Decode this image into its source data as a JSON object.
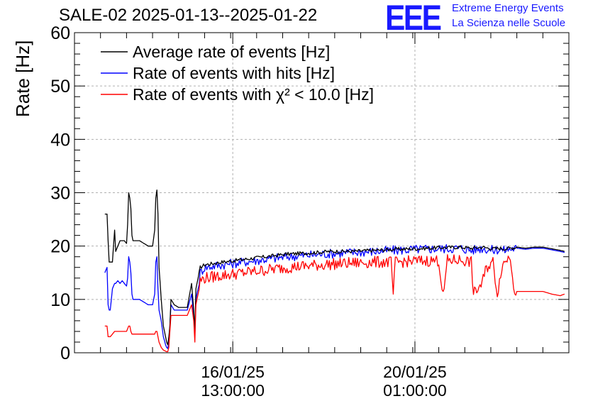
{
  "header": {
    "title": "SALE-02 2025-01-13--2025-01-22"
  },
  "logo": {
    "mark": "EEE",
    "line1": "Extreme Energy Events",
    "line2": "La Scienza nelle Scuole",
    "color": "#1a1aff"
  },
  "chart_data": {
    "type": "line",
    "title": "SALE-02 2025-01-13--2025-01-22",
    "ylabel": "Rate [Hz]",
    "xlabel": "",
    "ylim": [
      0,
      60
    ],
    "yticks": [
      "0",
      "10",
      "20",
      "30",
      "40",
      "50",
      "60"
    ],
    "x_unit": "hours since 2025-01-13 00:00",
    "xlim": [
      12,
      240
    ],
    "xticks": [
      {
        "x": 85,
        "line1": "16/01/25",
        "line2": "13:00:00"
      },
      {
        "x": 169,
        "line1": "20/01/25",
        "line2": "01:00:00"
      }
    ],
    "grid": true,
    "legend_position": "top-left",
    "series": [
      {
        "name": "Average rate of events [Hz]",
        "color": "#000000",
        "points": [
          [
            26,
            26
          ],
          [
            27,
            26
          ],
          [
            27.5,
            21
          ],
          [
            28,
            17
          ],
          [
            28.5,
            17
          ],
          [
            29.5,
            17
          ],
          [
            30.5,
            23
          ],
          [
            31,
            19
          ],
          [
            32,
            20
          ],
          [
            33,
            21
          ],
          [
            34,
            21
          ],
          [
            35,
            21
          ],
          [
            36,
            20.5
          ],
          [
            36.5,
            24
          ],
          [
            37,
            30
          ],
          [
            37.5,
            29
          ],
          [
            38,
            27
          ],
          [
            38.5,
            22
          ],
          [
            39,
            21
          ],
          [
            41,
            21
          ],
          [
            42,
            21
          ],
          [
            44,
            20.5
          ],
          [
            46,
            20
          ],
          [
            47,
            20
          ],
          [
            48,
            20
          ],
          [
            49,
            23
          ],
          [
            49.5,
            29
          ],
          [
            50,
            30.5
          ],
          [
            50.5,
            26
          ],
          [
            51,
            16
          ],
          [
            52,
            10
          ],
          [
            53,
            5
          ],
          [
            54,
            3
          ],
          [
            54.5,
            2
          ],
          [
            55,
            1.5
          ],
          [
            55.5,
            3
          ],
          [
            56,
            5
          ],
          [
            56.5,
            10
          ],
          [
            58,
            9
          ],
          [
            60,
            8.5
          ],
          [
            62,
            8.5
          ],
          [
            64,
            8.5
          ],
          [
            66,
            13
          ],
          [
            67,
            8
          ],
          [
            67.5,
            4
          ],
          [
            68,
            12
          ],
          [
            69,
            14
          ],
          [
            70,
            16
          ],
          [
            72,
            16.5
          ],
          [
            80,
            17
          ],
          [
            90,
            17.5
          ],
          [
            100,
            18
          ],
          [
            110,
            18.5
          ],
          [
            120,
            18.7
          ],
          [
            130,
            19
          ],
          [
            140,
            19
          ],
          [
            150,
            19.2
          ],
          [
            160,
            19.4
          ],
          [
            170,
            19.5
          ],
          [
            180,
            19.7
          ],
          [
            190,
            19.8
          ],
          [
            195,
            19.6
          ],
          [
            200,
            19.8
          ],
          [
            205,
            19.5
          ],
          [
            208,
            19.6
          ],
          [
            210,
            19.5
          ],
          [
            213,
            19.6
          ],
          [
            216,
            19.8
          ],
          [
            220,
            19.6
          ],
          [
            224,
            19.8
          ],
          [
            228,
            19.8
          ],
          [
            232,
            19.5
          ],
          [
            236,
            19.2
          ],
          [
            238,
            19
          ]
        ]
      },
      {
        "name": "Rate of events with hits [Hz]",
        "color": "#0000ff",
        "points": [
          [
            26,
            15
          ],
          [
            27,
            16
          ],
          [
            27.5,
            9
          ],
          [
            28,
            8
          ],
          [
            28.5,
            8
          ],
          [
            29.5,
            12
          ],
          [
            30.5,
            13
          ],
          [
            31,
            13
          ],
          [
            32,
            13.5
          ],
          [
            33,
            13
          ],
          [
            34,
            13.5
          ],
          [
            35,
            13
          ],
          [
            36,
            12.5
          ],
          [
            36.5,
            14
          ],
          [
            37,
            18
          ],
          [
            37.5,
            17
          ],
          [
            38,
            15
          ],
          [
            38.5,
            11
          ],
          [
            39,
            10
          ],
          [
            41,
            10
          ],
          [
            42,
            10
          ],
          [
            44,
            9.5
          ],
          [
            46,
            9
          ],
          [
            47,
            9
          ],
          [
            48,
            9
          ],
          [
            49,
            11
          ],
          [
            49.5,
            17
          ],
          [
            50,
            18
          ],
          [
            50.5,
            12
          ],
          [
            51,
            8
          ],
          [
            52,
            6
          ],
          [
            53,
            3
          ],
          [
            54,
            1.5
          ],
          [
            54.5,
            1
          ],
          [
            55,
            0.8
          ],
          [
            55.5,
            2
          ],
          [
            56,
            5
          ],
          [
            56.5,
            9
          ],
          [
            58,
            8
          ],
          [
            60,
            8
          ],
          [
            62,
            8
          ],
          [
            64,
            8
          ],
          [
            66,
            11
          ],
          [
            67,
            7
          ],
          [
            67.5,
            3
          ],
          [
            68,
            10
          ],
          [
            69,
            12
          ],
          [
            70,
            15
          ],
          [
            72,
            16
          ],
          [
            80,
            16.5
          ],
          [
            90,
            17
          ],
          [
            100,
            17.5
          ],
          [
            110,
            18
          ],
          [
            120,
            18.3
          ],
          [
            130,
            18.6
          ],
          [
            140,
            18.8
          ],
          [
            150,
            19
          ],
          [
            160,
            19.2
          ],
          [
            170,
            19.4
          ],
          [
            180,
            19.5
          ],
          [
            190,
            19.6
          ],
          [
            195,
            19.2
          ],
          [
            200,
            19.6
          ],
          [
            205,
            19.2
          ],
          [
            208,
            19.4
          ],
          [
            210,
            19.2
          ],
          [
            213,
            19.5
          ],
          [
            216,
            19.6
          ],
          [
            220,
            19.4
          ],
          [
            224,
            19.6
          ],
          [
            228,
            19.6
          ],
          [
            232,
            19.3
          ],
          [
            236,
            19
          ],
          [
            238,
            18.8
          ]
        ]
      },
      {
        "name": "Rate of events with χ² < 10.0 [Hz]",
        "color": "#ff0000",
        "points": [
          [
            26,
            5
          ],
          [
            27,
            5
          ],
          [
            27.5,
            3
          ],
          [
            28,
            3
          ],
          [
            28.5,
            3
          ],
          [
            29.5,
            3.5
          ],
          [
            30.5,
            4
          ],
          [
            31,
            4
          ],
          [
            32,
            4
          ],
          [
            33,
            4
          ],
          [
            34,
            4
          ],
          [
            35,
            4
          ],
          [
            36,
            4
          ],
          [
            36.5,
            4.5
          ],
          [
            37,
            5
          ],
          [
            37.5,
            5
          ],
          [
            38,
            4
          ],
          [
            38.5,
            3.5
          ],
          [
            39,
            3.5
          ],
          [
            41,
            3.5
          ],
          [
            42,
            3.5
          ],
          [
            44,
            3.5
          ],
          [
            46,
            3.5
          ],
          [
            47,
            3.5
          ],
          [
            48,
            3.5
          ],
          [
            49,
            3.5
          ],
          [
            49.5,
            4
          ],
          [
            50,
            4
          ],
          [
            50.5,
            3
          ],
          [
            51,
            2
          ],
          [
            52,
            1
          ],
          [
            53,
            0.5
          ],
          [
            54,
            0.3
          ],
          [
            54.5,
            0.2
          ],
          [
            55,
            0.2
          ],
          [
            55.5,
            1
          ],
          [
            56,
            4
          ],
          [
            56.5,
            7
          ],
          [
            58,
            7
          ],
          [
            60,
            7
          ],
          [
            62,
            7
          ],
          [
            64,
            7
          ],
          [
            66,
            9
          ],
          [
            67,
            6
          ],
          [
            67.5,
            2
          ],
          [
            68,
            9
          ],
          [
            69,
            11
          ],
          [
            70,
            13.5
          ],
          [
            72,
            14
          ],
          [
            80,
            14.5
          ],
          [
            90,
            15
          ],
          [
            100,
            15.5
          ],
          [
            110,
            16
          ],
          [
            120,
            16.3
          ],
          [
            130,
            16.6
          ],
          [
            140,
            16.8
          ],
          [
            150,
            17
          ],
          [
            158,
            17
          ],
          [
            159,
            11
          ],
          [
            160,
            17
          ],
          [
            170,
            17.2
          ],
          [
            180,
            17.3
          ],
          [
            182,
            10.5
          ],
          [
            184,
            17.3
          ],
          [
            190,
            17.4
          ],
          [
            195,
            17
          ],
          [
            196,
            11
          ],
          [
            198,
            12
          ],
          [
            200,
            13
          ],
          [
            202,
            16
          ],
          [
            205,
            17
          ],
          [
            207,
            11
          ],
          [
            209,
            16
          ],
          [
            211,
            17.5
          ],
          [
            213,
            18
          ],
          [
            215,
            11.5
          ],
          [
            217,
            11.5
          ],
          [
            220,
            11.5
          ],
          [
            224,
            11.5
          ],
          [
            228,
            11.5
          ],
          [
            232,
            11
          ],
          [
            236,
            10.7
          ],
          [
            238,
            11
          ]
        ]
      }
    ]
  }
}
